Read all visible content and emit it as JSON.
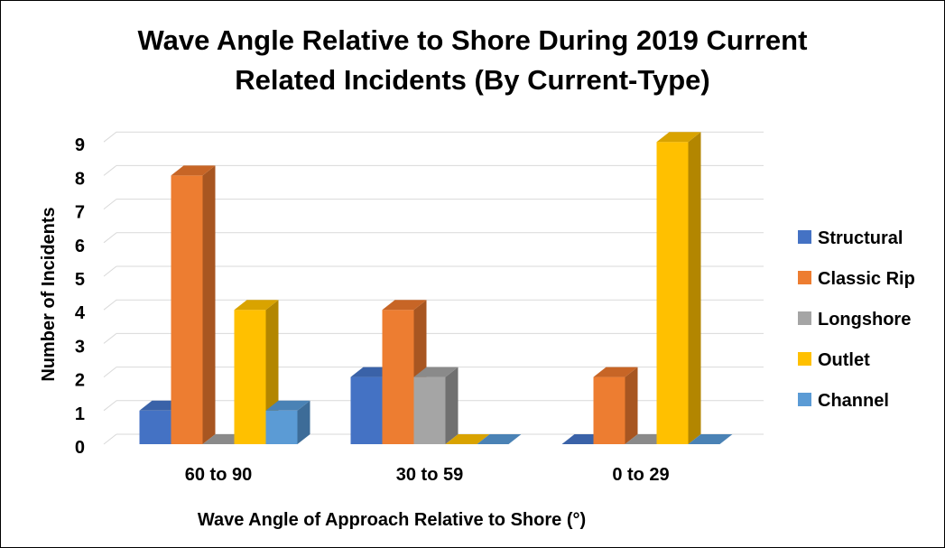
{
  "chart_data": {
    "type": "bar",
    "title_lines": [
      "Wave Angle Relative to Shore During 2019 Current",
      "Related Incidents (By Current-Type)"
    ],
    "xlabel": "Wave Angle of Approach Relative to Shore (°)",
    "ylabel": "Number of Incidents",
    "categories": [
      "60 to 90",
      "30 to 59",
      "0 to 29"
    ],
    "ylim": [
      0,
      9
    ],
    "yticks": [
      0,
      1,
      2,
      3,
      4,
      5,
      6,
      7,
      8,
      9
    ],
    "grid": true,
    "legend_position": "right",
    "style": "3d-clustered-column",
    "series": [
      {
        "name": "Structural",
        "values": [
          1,
          2,
          0
        ],
        "color": "#4472C4",
        "side_color": "#2F5597",
        "top_color": "#3A62A8"
      },
      {
        "name": "Classic Rip",
        "values": [
          8,
          4,
          2
        ],
        "color": "#ED7D31",
        "side_color": "#A85621",
        "top_color": "#C76526"
      },
      {
        "name": "Longshore",
        "values": [
          0,
          2,
          0
        ],
        "color": "#A5A5A5",
        "side_color": "#707070",
        "top_color": "#8A8A8A"
      },
      {
        "name": "Outlet",
        "values": [
          4,
          0,
          9
        ],
        "color": "#FFC000",
        "side_color": "#B38600",
        "top_color": "#D9A300"
      },
      {
        "name": "Channel",
        "values": [
          1,
          0,
          0
        ],
        "color": "#5B9BD5",
        "side_color": "#3D6C98",
        "top_color": "#4A82B5"
      }
    ]
  }
}
